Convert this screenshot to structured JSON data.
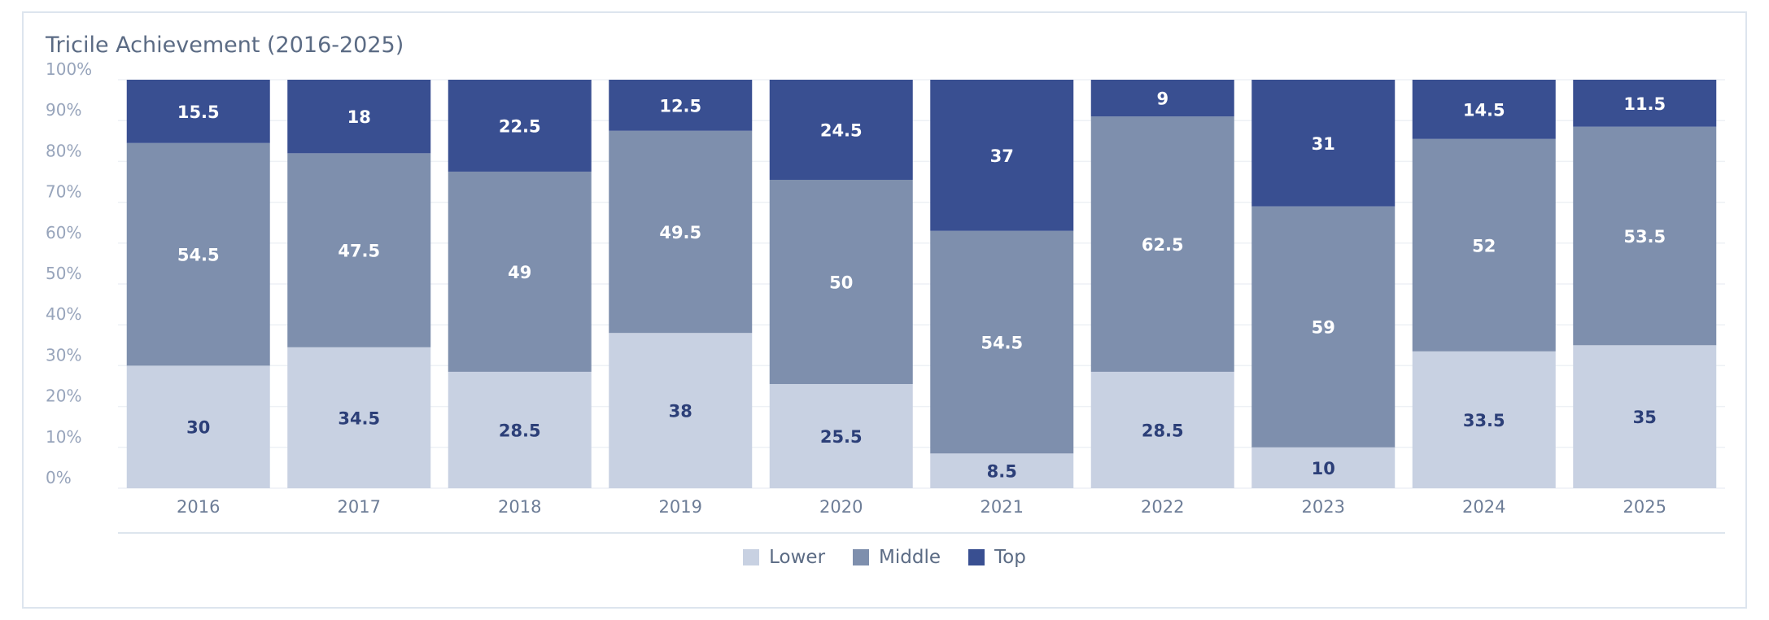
{
  "chart_data": {
    "type": "bar",
    "stacked": true,
    "title": "Tricile Achievement (2016-2025)",
    "xlabel": "",
    "ylabel": "",
    "ylim": [
      0,
      100
    ],
    "yticks": [
      "0%",
      "10%",
      "20%",
      "30%",
      "40%",
      "50%",
      "60%",
      "70%",
      "80%",
      "90%",
      "100%"
    ],
    "grid": true,
    "legend_position": "bottom-center",
    "categories": [
      "2016",
      "2017",
      "2018",
      "2019",
      "2020",
      "2021",
      "2022",
      "2023",
      "2024",
      "2025"
    ],
    "series": [
      {
        "name": "Lower",
        "color": "#c8d1e2",
        "label_color": "#2c3f78",
        "values": [
          30,
          34.5,
          28.5,
          38,
          25.5,
          8.5,
          28.5,
          10,
          33.5,
          35
        ]
      },
      {
        "name": "Middle",
        "color": "#7e8fad",
        "label_color": "#ffffff",
        "values": [
          54.5,
          47.5,
          49,
          49.5,
          50,
          54.5,
          62.5,
          59,
          52,
          53.5
        ]
      },
      {
        "name": "Top",
        "color": "#394f91",
        "label_color": "#ffffff",
        "values": [
          15.5,
          18,
          22.5,
          12.5,
          24.5,
          37,
          9,
          31,
          14.5,
          11.5
        ]
      }
    ]
  }
}
